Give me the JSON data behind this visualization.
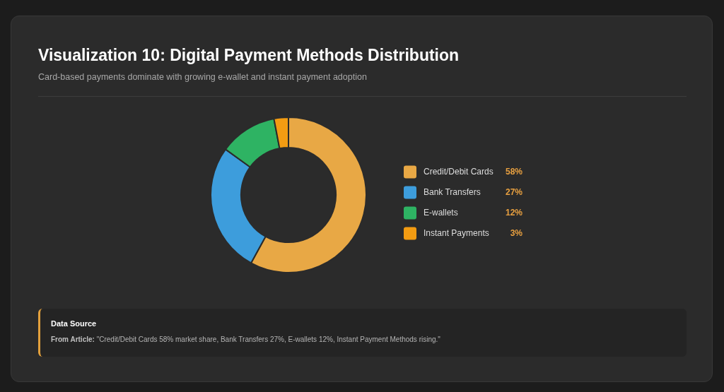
{
  "chart_data": {
    "type": "donut",
    "title": "Visualization 10: Digital Payment Methods Distribution",
    "subtitle": "Card-based payments dominate with growing e-wallet and instant payment adoption",
    "categories": [
      "Credit/Debit Cards",
      "Bank Transfers",
      "E-wallets",
      "Instant Payments"
    ],
    "values": [
      58,
      27,
      12,
      3
    ],
    "colors": [
      "#e8a845",
      "#3d9ddc",
      "#2eb363",
      "#f39c12"
    ],
    "value_labels": [
      "58%",
      "27%",
      "12%",
      "3%"
    ],
    "legend": "right",
    "annotations": [
      "Data Source",
      "From Article:",
      "\"Credit/Debit Cards 58% market share, Bank Transfers 27%, E-wallets 12%, Instant Payment Methods rising.\""
    ]
  }
}
